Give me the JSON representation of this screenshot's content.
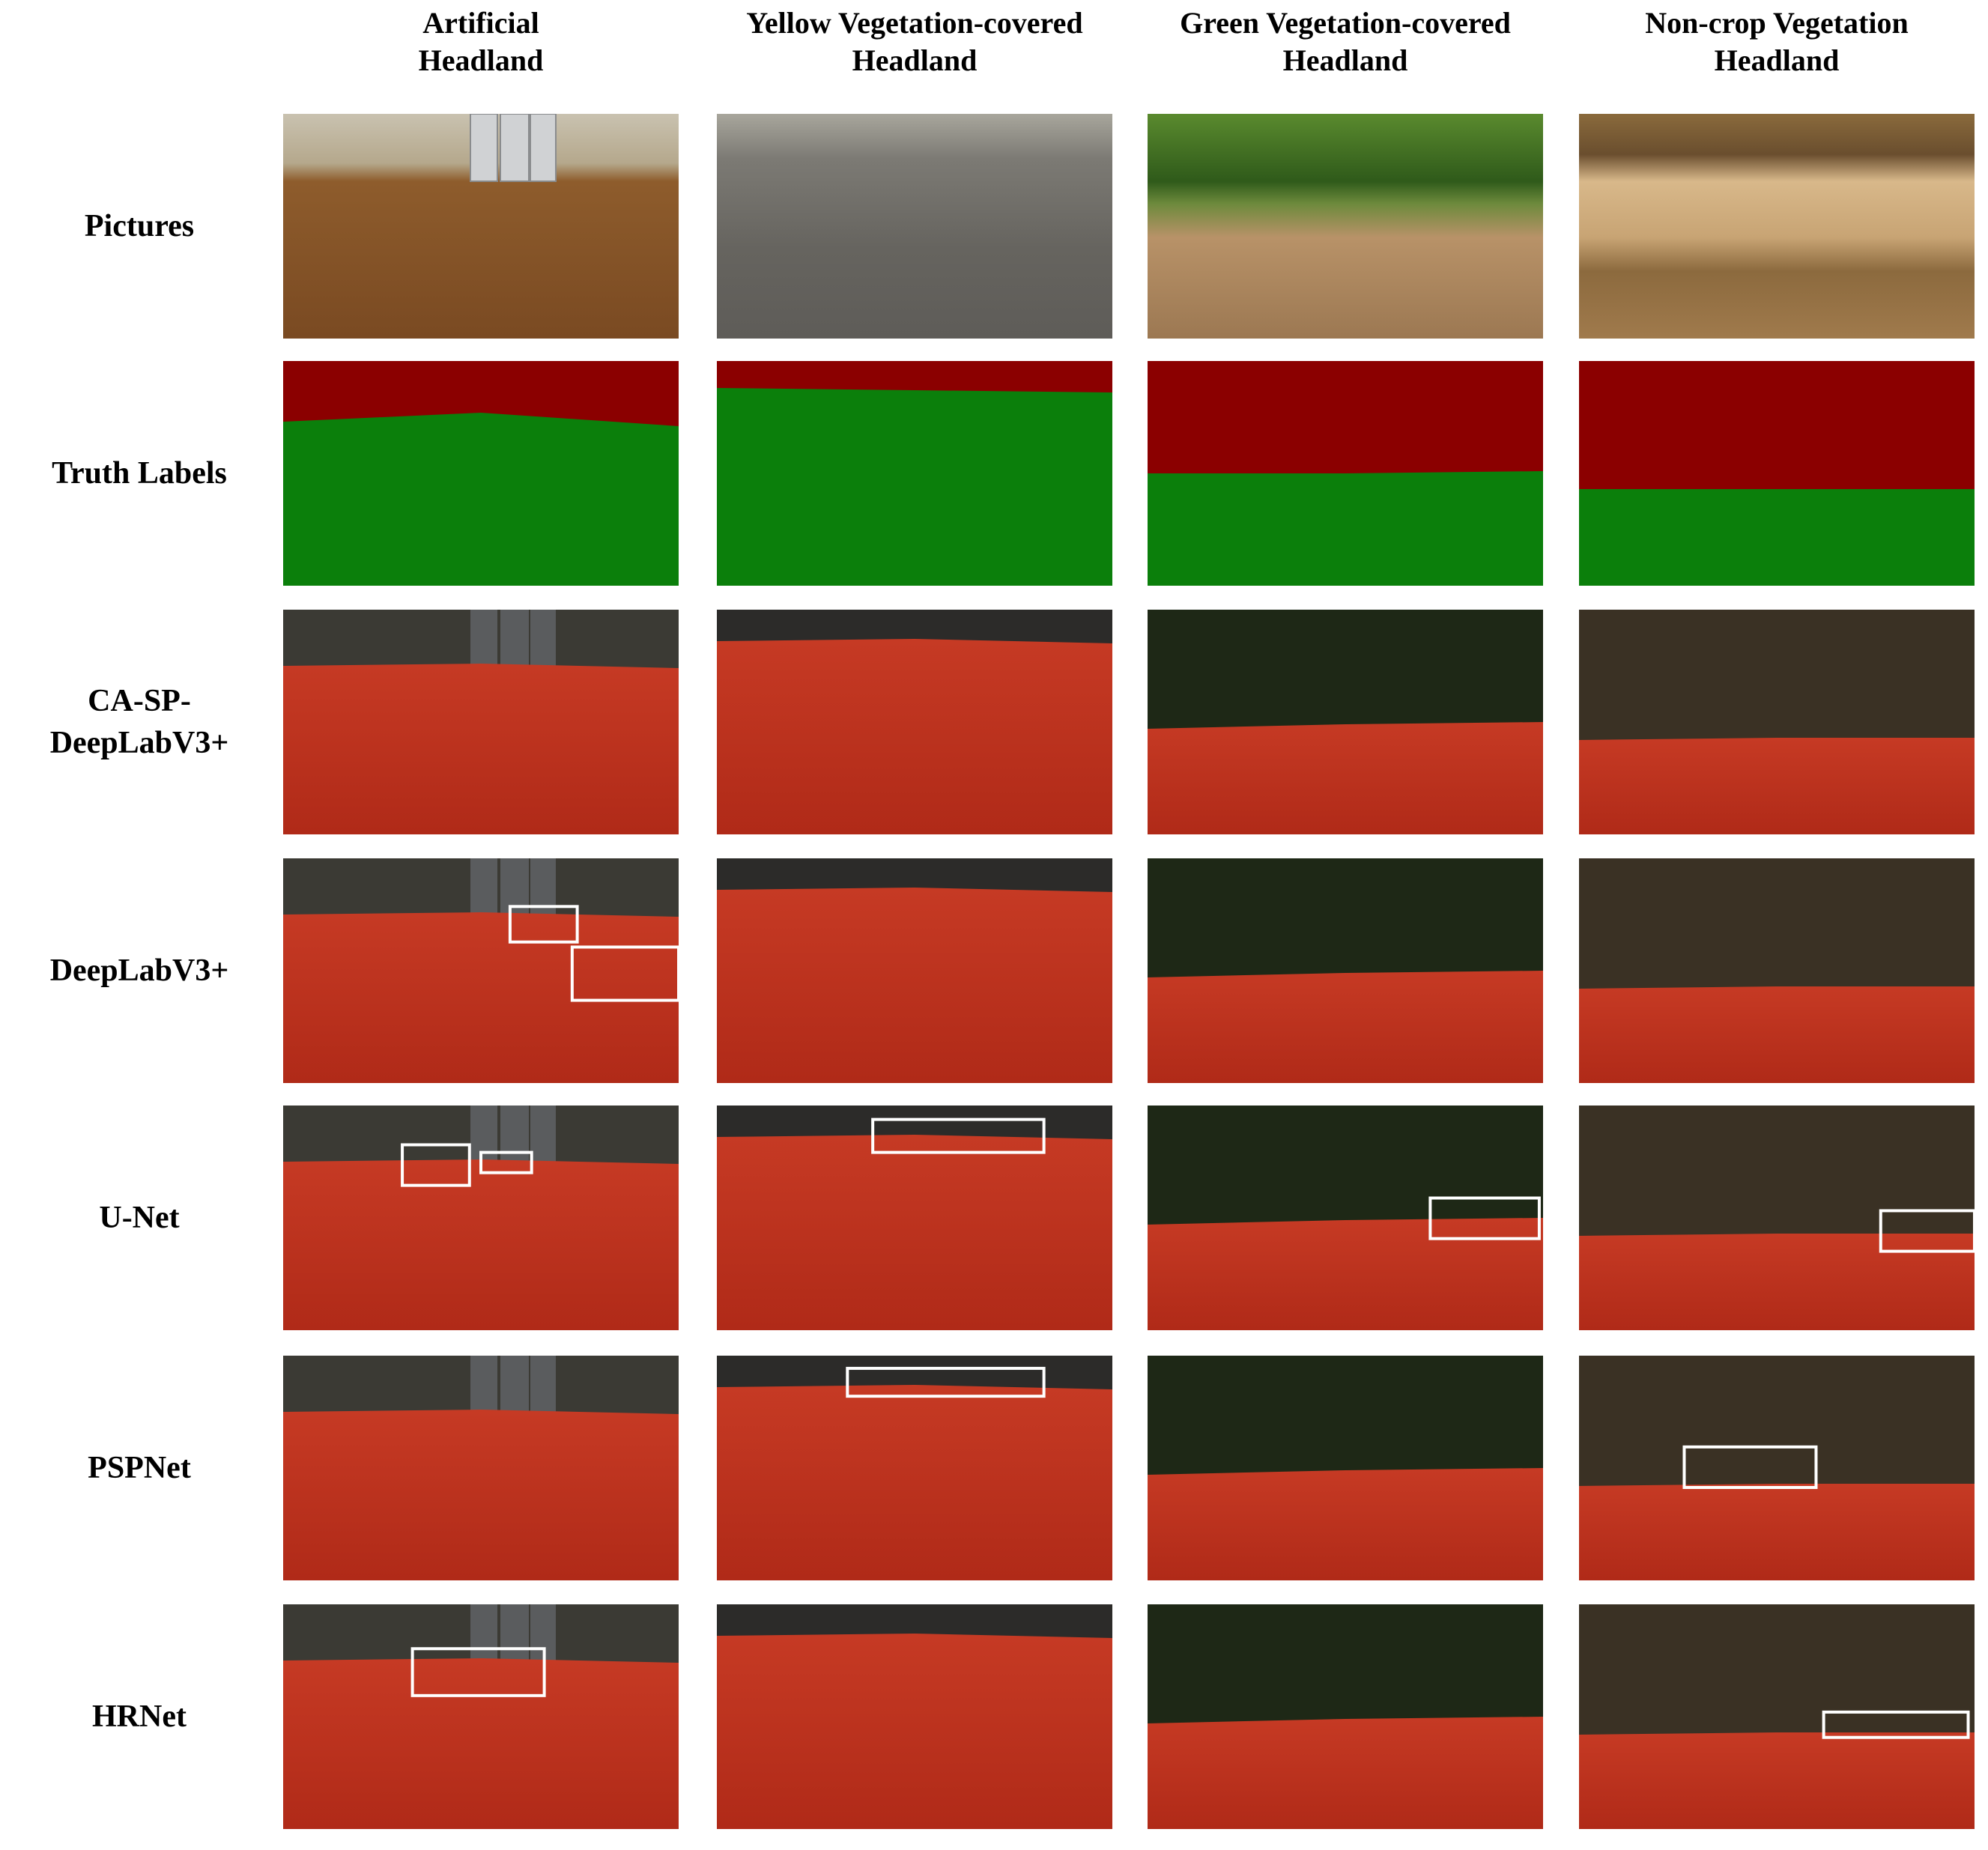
{
  "columns": [
    {
      "lines": [
        "Artificial",
        "Headland"
      ]
    },
    {
      "lines": [
        "Yellow Vegetation-covered",
        "Headland"
      ]
    },
    {
      "lines": [
        "Green Vegetation-covered",
        "Headland"
      ]
    },
    {
      "lines": [
        "Non-crop Vegetation",
        "Headland"
      ]
    }
  ],
  "rows": [
    {
      "lines": [
        "Pictures"
      ]
    },
    {
      "lines": [
        "Truth Labels"
      ]
    },
    {
      "lines": [
        "CA-SP-",
        "DeepLabV3+"
      ]
    },
    {
      "lines": [
        "DeepLabV3+"
      ]
    },
    {
      "lines": [
        "U-Net"
      ]
    },
    {
      "lines": [
        "PSPNet"
      ]
    },
    {
      "lines": [
        "HRNet"
      ]
    }
  ]
}
